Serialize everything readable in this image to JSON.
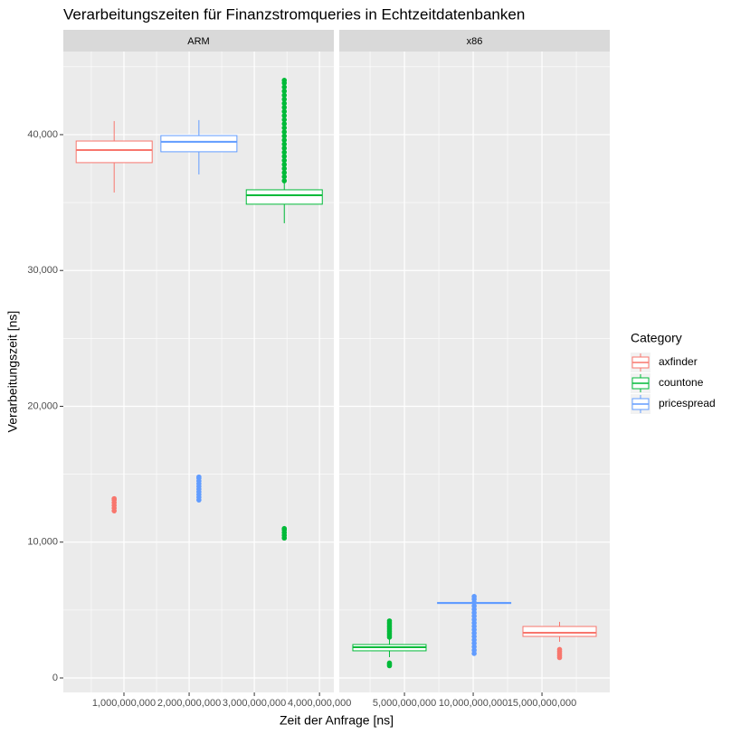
{
  "chart_data": {
    "type": "boxplot",
    "title": "Verarbeitungszeiten für Finanzstromqueries in Echtzeitdatenbanken",
    "x_label": "Zeit der Anfrage [ns]",
    "y_label": "Verarbeitungszeit [ns]",
    "legend_title": "Category",
    "legend_position": "right",
    "grid": true,
    "ylim": [
      -1065,
      46120
    ],
    "yticks": [
      0,
      {
        "value": 10000,
        "label": "10,000"
      },
      {
        "value": 20000,
        "label": "20,000"
      },
      {
        "value": 30000,
        "label": "30,000"
      },
      {
        "value": 40000,
        "label": "40,000"
      }
    ],
    "series": [
      {
        "name": "axfinder",
        "color": "#f8766d"
      },
      {
        "name": "countone",
        "color": "#00ba38"
      },
      {
        "name": "pricespread",
        "color": "#619cff"
      }
    ],
    "panels": [
      {
        "label": "ARM",
        "xlim": [
          70000000,
          4220000000
        ],
        "xticks": [
          {
            "value": 1000000000,
            "label": "1,000,000,000"
          },
          {
            "value": 2000000000,
            "label": "2,000,000,000"
          },
          {
            "value": 3000000000,
            "label": "3,000,000,000"
          },
          {
            "value": 4000000000,
            "label": "4,000,000,000"
          }
        ],
        "boxes": [
          {
            "x": 850000000,
            "min": 35740,
            "q1": 37940,
            "median": 38870,
            "q3": 39530,
            "max": 41000,
            "outliers": [
              12300,
              12500,
              12700,
              12900,
              13100,
              13200
            ]
          },
          {
            "x": 3460000000,
            "min": 33480,
            "q1": 34880,
            "median": 35540,
            "q3": 35940,
            "max": 36500,
            "outliers": [
              10300,
              10500,
              10700,
              10900,
              11000,
              36600,
              36900,
              37200,
              37500,
              37800,
              38100,
              38400,
              38700,
              39000,
              39300,
              39600,
              39900,
              40200,
              40500,
              40800,
              41100,
              41400,
              41700,
              42000,
              42300,
              42600,
              42900,
              43200,
              43500,
              43800,
              44000
            ]
          },
          {
            "x": 2150000000,
            "min": 37070,
            "q1": 38740,
            "median": 39470,
            "q3": 39930,
            "max": 41070,
            "outliers": [
              13100,
              13300,
              13500,
              13700,
              13900,
              14100,
              14300,
              14500,
              14700,
              14800
            ]
          }
        ]
      },
      {
        "label": "x86",
        "xlim": [
          260000000,
          19930000000
        ],
        "xticks": [
          {
            "value": 5000000000,
            "label": "5,000,000,000"
          },
          {
            "value": 10000000000,
            "label": "10,000,000,000"
          },
          {
            "value": 15000000000,
            "label": "15,000,000,000"
          }
        ],
        "boxes": [
          {
            "x": 16280000000,
            "min": 2660,
            "q1": 3060,
            "median": 3330,
            "q3": 3790,
            "max": 4130,
            "outliers": [
              1500,
              1650,
              1800,
              1950,
              2100
            ]
          },
          {
            "x": 3910000000,
            "min": 1530,
            "q1": 2000,
            "median": 2260,
            "q3": 2460,
            "max": 2930,
            "outliers": [
              900,
              1000,
              1100,
              3000,
              3150,
              3300,
              3450,
              3600,
              3750,
              3900,
              4050,
              4200
            ]
          },
          {
            "x": 10070000000,
            "min": 5450,
            "q1": 5480,
            "median": 5520,
            "q3": 5560,
            "max": 5600,
            "outliers": [
              1800,
              2050,
              2300,
              2550,
              2800,
              3050,
              3300,
              3550,
              3800,
              4050,
              4300,
              4550,
              4800,
              5050,
              5300,
              5550,
              5800,
              6000
            ]
          }
        ]
      }
    ]
  }
}
